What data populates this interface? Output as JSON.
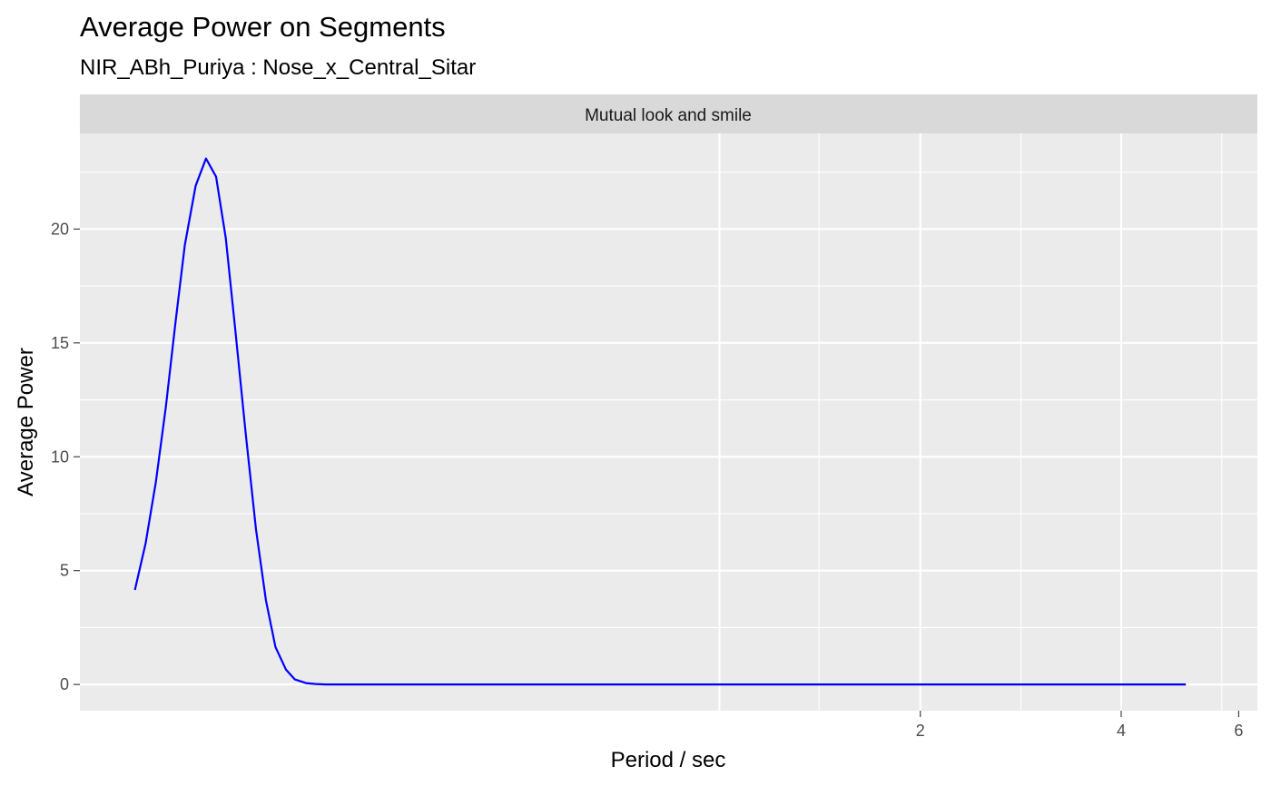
{
  "chart_data": {
    "type": "line",
    "title": "Average Power on Segments",
    "subtitle": "NIR_ABh_Puriya : Nose_x_Central_Sitar",
    "facet_label": "Mutual look and smile",
    "xlabel": "Period / sec",
    "ylabel": "Average Power",
    "x_scale": "log2",
    "xlim": [
      0.11,
      6.4
    ],
    "ylim": [
      -1.15,
      24.2
    ],
    "x_ticks": [
      2,
      4,
      6
    ],
    "x_tick_labels": [
      "2",
      "4",
      "6"
    ],
    "x_grid_major": [
      1,
      2,
      4
    ],
    "x_grid_minor": [
      1.41,
      2.83,
      5.66
    ],
    "y_ticks": [
      0,
      5,
      10,
      15,
      20
    ],
    "y_tick_labels": [
      "0",
      "5",
      "10",
      "15",
      "20"
    ],
    "grid": true,
    "legend": "none",
    "line_color": "#0000ff",
    "panel_color": "#ebebeb",
    "strip_color": "#d9d9d9",
    "series": [
      {
        "x": [
          0.133,
          0.138,
          0.143,
          0.148,
          0.153,
          0.158,
          0.164,
          0.17,
          0.176,
          0.182,
          0.188,
          0.195,
          0.202,
          0.209,
          0.216,
          0.224,
          0.231,
          0.24,
          0.248,
          0.257,
          0.265,
          0.274,
          0.284,
          0.294,
          0.32,
          0.4,
          0.6,
          1.0,
          2.0,
          4.0,
          5.0
        ],
        "y": [
          4.15,
          6.2,
          8.9,
          12.2,
          15.9,
          19.3,
          21.9,
          23.1,
          22.3,
          19.6,
          15.6,
          11.0,
          6.8,
          3.7,
          1.65,
          0.65,
          0.22,
          0.06,
          0.02,
          0.0,
          0.0,
          0.0,
          0.0,
          0.0,
          0.0,
          0.0,
          0.0,
          0.0,
          0.0,
          0.0,
          0.0
        ]
      }
    ]
  }
}
